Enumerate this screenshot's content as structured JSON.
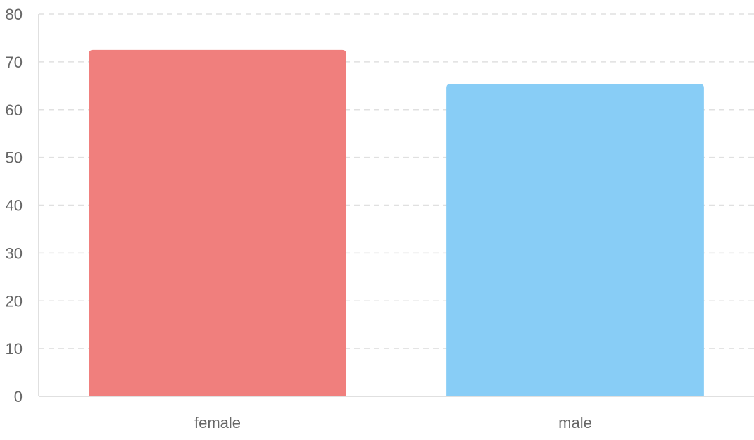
{
  "chart_data": {
    "type": "bar",
    "title": "",
    "xlabel": "",
    "ylabel": "",
    "categories": [
      "female",
      "male"
    ],
    "values": [
      72.5,
      65.4
    ],
    "colors": [
      "#f07f7d",
      "#88cdf6"
    ],
    "ylim": [
      0,
      80
    ],
    "yticks": [
      0,
      10,
      20,
      30,
      40,
      50,
      60,
      70,
      80
    ],
    "ytick_labels": [
      "0",
      "10",
      "20",
      "30",
      "40",
      "50",
      "60",
      "70",
      "80"
    ],
    "grid": true,
    "legend": "none"
  },
  "style": {
    "grid_color": "#e0e0e0",
    "axis_color": "#d6d6d6",
    "text_color": "#666666"
  }
}
